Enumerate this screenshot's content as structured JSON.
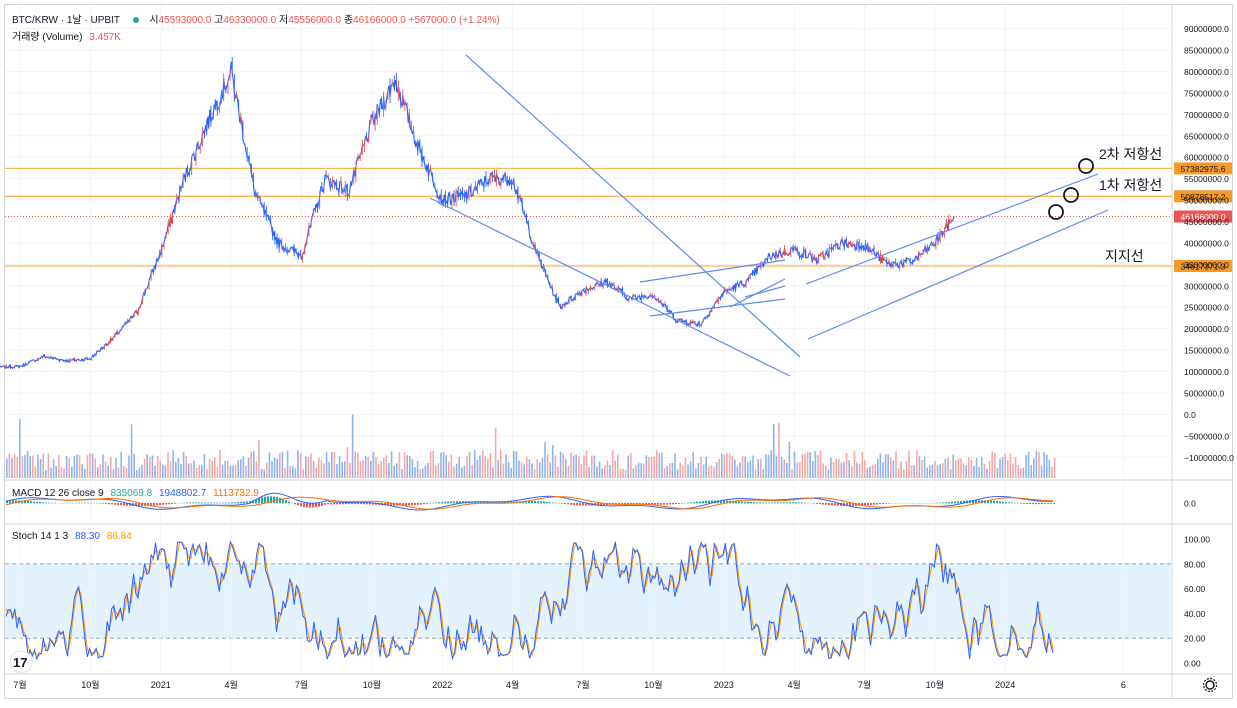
{
  "header": {
    "symbol": "BTC/KRW",
    "interval": "1날",
    "exchange": "UPBIT",
    "open_label": "시",
    "open": "45593000.0",
    "high_label": "고",
    "high": "46330000.0",
    "low_label": "저",
    "low": "45556000.0",
    "close_label": "종",
    "close": "46166000.0",
    "change": "+567000.0 (+1.24%)",
    "volume_label": "거래량 (Volume)",
    "volume_value": "3.457K"
  },
  "macd": {
    "label": "MACD 12 26 close 9",
    "v1": "835069.8",
    "v2": "1948802.7",
    "v3": "1113732.9"
  },
  "stoch": {
    "label": "Stoch 14 1 3",
    "k": "88.30",
    "d": "86.84"
  },
  "annotations": {
    "resist2": "2차 저항선",
    "resist1": "1차 저항선",
    "support": "지지선"
  },
  "colors": {
    "up": "#26a69a",
    "down": "#ef5350",
    "candle": "#2962ff",
    "level": "#f7b955",
    "trend": "#5b8def",
    "macd": "#2962ff",
    "signal": "#ff6d00",
    "stoch_k": "#2962ff",
    "stoch_d": "#ff9800",
    "band": "#e3f2fd"
  },
  "chart_data": [
    {
      "type": "line",
      "series": [
        {
          "x": [
            "2020-06",
            "2020-07",
            "2020-08",
            "2020-09",
            "2020-10",
            "2020-11",
            "2020-12",
            "2021-01",
            "2021-02",
            "2021-03",
            "2021-04",
            "2021-05",
            "2021-06",
            "2021-07",
            "2021-08",
            "2021-09",
            "2021-10",
            "2021-11",
            "2021-12",
            "2022-01",
            "2022-02",
            "2022-03",
            "2022-04",
            "2022-05",
            "2022-06",
            "2022-07",
            "2022-08",
            "2022-09",
            "2022-10",
            "2022-11",
            "2022-12",
            "2023-01",
            "2023-02",
            "2023-03",
            "2023-04",
            "2023-05",
            "2023-06",
            "2023-07",
            "2023-08",
            "2023-09",
            "2023-10",
            "2023-10-26"
          ],
          "values": [
            11000000,
            11200000,
            13500000,
            12500000,
            13000000,
            18000000,
            24000000,
            38000000,
            55000000,
            68000000,
            80000000,
            52000000,
            40000000,
            37000000,
            55000000,
            52000000,
            68000000,
            78000000,
            62000000,
            50000000,
            51000000,
            55000000,
            55000000,
            38000000,
            25000000,
            29000000,
            31000000,
            27000000,
            28000000,
            22000000,
            21000000,
            28500000,
            31000000,
            37000000,
            38500000,
            36000000,
            40000000,
            39500000,
            35000000,
            35500000,
            40000000,
            46166000
          ]
        }
      ],
      "x_ticks": [
        "7월",
        "10월",
        "2021",
        "4월",
        "7월",
        "10월",
        "2022",
        "4월",
        "7월",
        "10월",
        "2023",
        "4월",
        "7월",
        "10월",
        "2024",
        "6"
      ],
      "y_ticks": [
        "90000000.0",
        "85000000.0",
        "80000000.0",
        "75000000.0",
        "70000000.0",
        "65000000.0",
        "60000000.0",
        "55000000.0",
        "50000000.0",
        "45000000.0",
        "40000000.0",
        "35000000.0",
        "30000000.0",
        "25000000.0",
        "20000000.0",
        "15000000.0",
        "10000000.0",
        "5000000.0",
        "0.0",
        "−5000000.0",
        "−10000000.0"
      ],
      "levels": [
        {
          "value": 57382975.6,
          "label": "57382975.6"
        },
        {
          "value": 50878517.2,
          "label": "50878517.2"
        },
        {
          "value": 34617371.3,
          "label": "34617371.3"
        }
      ],
      "last_price": {
        "value": 46166000,
        "label": "46166000.0"
      },
      "ylim": [
        -12500000,
        92000000
      ]
    },
    {
      "type": "bar",
      "name": "MACD",
      "y_ticks": [
        "0.0"
      ]
    },
    {
      "type": "line",
      "name": "Stoch",
      "y_ticks": [
        "100.00",
        "80.00",
        "60.00",
        "40.00",
        "20.00",
        "0.00"
      ],
      "ylim": [
        0,
        100
      ],
      "bands": [
        20,
        80
      ]
    }
  ]
}
